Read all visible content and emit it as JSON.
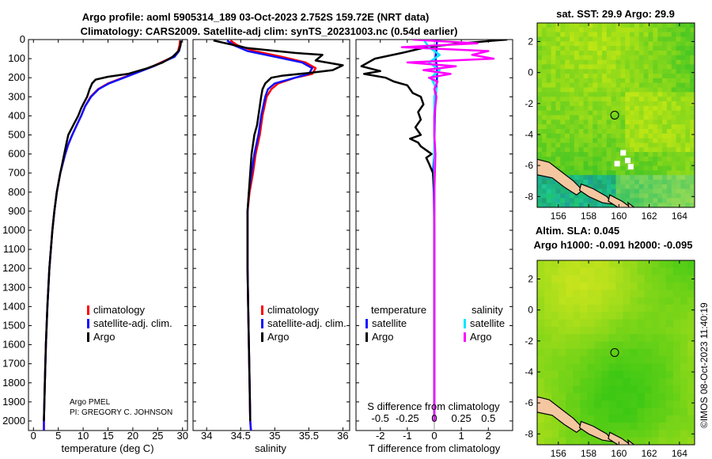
{
  "header": {
    "title_line1": "Argo profile: aoml 5905314_189 03-Oct-2023 2.752S 159.72E (NRT data)",
    "title_line2": "Climatology: CARS2009. Satellite-adj clim: synTS_20231003.nc (0.54d earlier)"
  },
  "colors": {
    "climatology": "#ff0000",
    "satellite": "#1010ff",
    "argo": "#000000",
    "sal_sat": "#00e5ff",
    "sal_argo": "#ff00ff"
  },
  "chart_data": [
    {
      "type": "line",
      "id": "temperature",
      "xlabel": "temperature (deg C)",
      "ylabel": "",
      "xlim": [
        -1,
        31
      ],
      "ylim": [
        2050,
        0
      ],
      "xticks": [
        0,
        5,
        10,
        15,
        20,
        25,
        30
      ],
      "yticks": [
        0,
        100,
        200,
        300,
        400,
        500,
        600,
        700,
        800,
        900,
        1000,
        1100,
        1200,
        1300,
        1400,
        1500,
        1600,
        1700,
        1800,
        1900,
        2000
      ],
      "legend": [
        "climatology",
        "satellite-adj. clim.",
        "Argo"
      ],
      "annotation1": "Argo PMEL",
      "annotation2": "PI: GREGORY C. JOHNSON",
      "series": [
        {
          "name": "climatology",
          "pressure": [
            5,
            30,
            60,
            90,
            110,
            140,
            170,
            200,
            230,
            260,
            300,
            350,
            400,
            450,
            500,
            550,
            600,
            700,
            800,
            900,
            1000,
            1200,
            1400,
            1600,
            1800,
            2000,
            2050
          ],
          "values": [
            29.5,
            29.4,
            29.1,
            28.2,
            26.5,
            24,
            21,
            18,
            15,
            13,
            11.5,
            10.4,
            9.6,
            8.7,
            7.8,
            7,
            6.4,
            5.4,
            4.7,
            4.2,
            3.8,
            3.2,
            2.8,
            2.5,
            2.3,
            2.1,
            2.1
          ]
        },
        {
          "name": "satellite-adj. clim.",
          "pressure": [
            5,
            30,
            60,
            90,
            110,
            140,
            170,
            200,
            230,
            260,
            300,
            350,
            400,
            450,
            500,
            550,
            600,
            700,
            800,
            900,
            1000,
            1200,
            1400,
            1600,
            1800,
            2000,
            2050
          ],
          "values": [
            29.7,
            29.6,
            29.3,
            28.4,
            26.7,
            24.2,
            21.2,
            18.2,
            15.2,
            13.1,
            11.6,
            10.4,
            9.6,
            8.7,
            7.8,
            7,
            6.4,
            5.4,
            4.7,
            4.2,
            3.8,
            3.2,
            2.8,
            2.5,
            2.3,
            2.1,
            2.1
          ]
        },
        {
          "name": "Argo",
          "pressure": [
            5,
            30,
            60,
            90,
            120,
            150,
            180,
            195,
            210,
            230,
            260,
            300,
            330,
            360,
            400,
            450,
            500,
            550,
            600,
            700,
            800,
            900,
            1000,
            1200,
            1400,
            1600,
            1800,
            2000
          ],
          "values": [
            29.7,
            29.6,
            29.2,
            28,
            26,
            23,
            19,
            15,
            12.5,
            11.8,
            11.3,
            10.8,
            10.2,
            9.6,
            9,
            8,
            7,
            6.6,
            6.2,
            5.4,
            4.7,
            4.2,
            3.8,
            3.2,
            2.8,
            2.5,
            2.3,
            2.1
          ]
        }
      ]
    },
    {
      "type": "line",
      "id": "salinity",
      "xlabel": "salinity",
      "xlim": [
        33.8,
        36.1
      ],
      "ylim": [
        2050,
        0
      ],
      "xticks": [
        34,
        34.5,
        35,
        35.5,
        36
      ],
      "legend": [
        "climatology",
        "satellite-adj. clim.",
        "Argo"
      ],
      "series": [
        {
          "name": "climatology",
          "pressure": [
            5,
            30,
            60,
            90,
            120,
            150,
            180,
            200,
            230,
            260,
            300,
            350,
            400,
            450,
            500,
            600,
            700,
            800,
            900,
            1000,
            1200,
            1400,
            1600,
            1800,
            2000,
            2050
          ],
          "values": [
            34.35,
            34.45,
            34.7,
            35.1,
            35.45,
            35.6,
            35.55,
            35.3,
            35.05,
            34.95,
            34.88,
            34.85,
            34.82,
            34.8,
            34.78,
            34.72,
            34.68,
            34.63,
            34.6,
            34.6,
            34.6,
            34.61,
            34.62,
            34.63,
            34.64,
            34.65
          ]
        },
        {
          "name": "satellite-adj. clim.",
          "pressure": [
            5,
            30,
            60,
            90,
            120,
            150,
            180,
            200,
            230,
            260,
            300,
            350,
            400,
            450,
            500,
            600,
            700,
            800,
            900,
            1000,
            1200,
            1400,
            1600,
            1800,
            2000,
            2050
          ],
          "values": [
            34.3,
            34.4,
            34.6,
            35.0,
            35.4,
            35.55,
            35.5,
            35.3,
            35.0,
            34.9,
            34.86,
            34.83,
            34.8,
            34.78,
            34.76,
            34.7,
            34.66,
            34.62,
            34.6,
            34.6,
            34.6,
            34.61,
            34.62,
            34.63,
            34.64,
            34.65
          ]
        },
        {
          "name": "Argo",
          "pressure": [
            5,
            25,
            45,
            70,
            80,
            110,
            135,
            160,
            175,
            190,
            200,
            230,
            260,
            300,
            350,
            400,
            450,
            500,
            550,
            600,
            700,
            800,
            900,
            1000,
            1200,
            1400,
            1600,
            1800,
            2000
          ],
          "values": [
            34.1,
            34.35,
            34.6,
            35.3,
            35.7,
            35.6,
            36.0,
            35.85,
            35.5,
            35.1,
            34.95,
            34.86,
            34.82,
            34.8,
            34.78,
            34.76,
            34.74,
            34.7,
            34.68,
            34.66,
            34.64,
            34.62,
            34.6,
            34.6,
            34.6,
            34.61,
            34.62,
            34.63,
            34.64
          ]
        }
      ]
    },
    {
      "type": "line",
      "id": "difference",
      "xlabel": "T difference from climatology",
      "xlabel2": "S difference from climatology",
      "xlim": [
        -2.9,
        2.9
      ],
      "ylim": [
        2050,
        0
      ],
      "xticks": [
        -2,
        -1,
        0,
        1,
        2
      ],
      "xticks2": [
        "-0.5",
        "-0.25",
        "0",
        "0.25",
        "0.5"
      ],
      "legend_temperature": "temperature",
      "legend_salinity": "salinity",
      "legend_items": [
        "satellite",
        "Argo",
        "satellite",
        "Argo"
      ],
      "series": [
        {
          "name": "T satellite",
          "pressure": [
            0,
            50,
            100,
            150,
            200,
            300,
            400,
            500,
            600,
            700,
            800,
            1000,
            1500,
            2000
          ],
          "values": [
            0.1,
            0.08,
            0.05,
            0.1,
            0.1,
            0.05,
            0.02,
            0.01,
            0,
            -0.05,
            -0.02,
            0,
            0,
            0
          ]
        },
        {
          "name": "T Argo",
          "pressure": [
            0,
            20,
            40,
            70,
            100,
            140,
            165,
            180,
            200,
            220,
            240,
            280,
            300,
            340,
            380,
            420,
            460,
            500,
            520,
            540,
            560,
            580,
            600,
            620,
            650,
            700,
            800,
            1000,
            1500,
            2000
          ],
          "values": [
            2.7,
            1.0,
            -0.3,
            -1.2,
            -2.2,
            -2.7,
            -2.0,
            -2.6,
            -1.8,
            -1.5,
            -1.0,
            -0.8,
            -0.5,
            -0.4,
            -0.6,
            -0.5,
            -0.7,
            -0.5,
            -0.9,
            -0.6,
            -0.5,
            -0.3,
            -0.1,
            -0.3,
            -0.2,
            -0.05,
            0,
            0,
            0,
            0
          ]
        },
        {
          "name": "S satellite",
          "pressure": [
            0,
            40,
            80,
            120,
            160,
            200,
            260,
            300,
            400,
            600,
            1000,
            1500,
            2000
          ],
          "values": [
            -0.1,
            -0.05,
            0.05,
            -0.05,
            0.05,
            -0.03,
            0.02,
            0,
            0,
            0,
            0,
            0,
            0
          ]
        },
        {
          "name": "S Argo",
          "pressure": [
            0,
            20,
            40,
            60,
            80,
            100,
            120,
            140,
            160,
            180,
            200,
            220,
            260,
            300,
            400,
            500,
            600,
            800,
            1000,
            1500,
            2000
          ],
          "values": [
            -0.2,
            0.4,
            -0.3,
            0.5,
            0.35,
            0.55,
            -0.25,
            0.2,
            -0.1,
            0.15,
            -0.05,
            0.03,
            0,
            0.02,
            0,
            0,
            0.01,
            0,
            0,
            0,
            0
          ]
        }
      ]
    },
    {
      "type": "heatmap",
      "id": "sst",
      "title": "sat. SST: 29.9 Argo: 29.9",
      "xticks": [
        156,
        158,
        160,
        162,
        164
      ],
      "yticks": [
        2,
        0,
        -2,
        -4,
        -6,
        -8
      ],
      "xlim": [
        154.6,
        165.0
      ],
      "ylim": [
        -8.7,
        3.2
      ],
      "argo_lon": 159.72,
      "argo_lat": -2.75
    },
    {
      "type": "heatmap",
      "id": "sla",
      "title1": "Altim. SLA: 0.045",
      "title2": "Argo h1000: -0.091 h2000: -0.095",
      "xticks": [
        156,
        158,
        160,
        162,
        164
      ],
      "yticks": [
        2,
        0,
        -2,
        -4,
        -6,
        -8
      ],
      "xlim": [
        154.6,
        165.0
      ],
      "ylim": [
        -8.7,
        3.2
      ],
      "argo_lon": 159.72,
      "argo_lat": -2.75
    }
  ],
  "footer": {
    "credit": "©IMOS 08-Oct-2023 11:40:19"
  }
}
